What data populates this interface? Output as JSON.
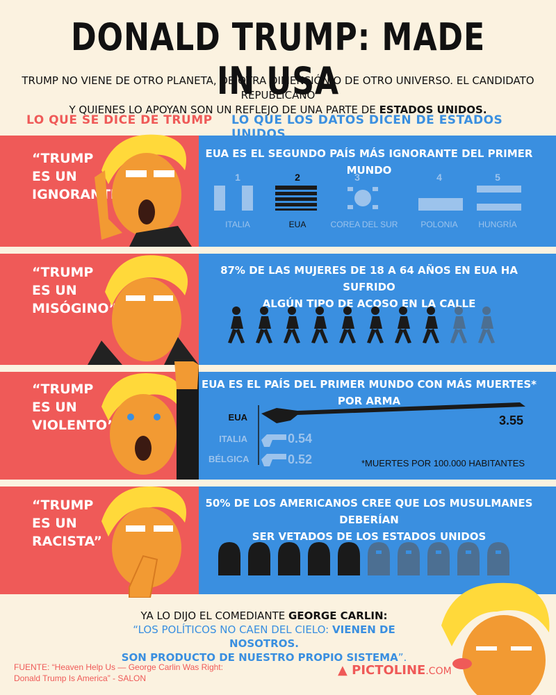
{
  "title": "DONALD TRUMP: MADE IN USA",
  "intro": {
    "line1": "TRUMP NO VIENE DE OTRO PLANETA, DE OTRA DIMENSIÓN O DE OTRO UNIVERSO. EL CANDIDATO REPUBLICANO",
    "line2": "Y QUIENES LO APOYAN SON UN REFLEJO DE UNA PARTE DE",
    "line2_bold": "ESTADOS UNIDOS."
  },
  "headers": {
    "left": "LO QUE SE DICE DE TRUMP",
    "right": "LO QUE LOS DATOS DICEN DE ESTADOS UNIDOS"
  },
  "colors": {
    "red": "#ef5a58",
    "blue": "#3a8fe0",
    "cream": "#fbf2e0",
    "dark": "#1a1a1a",
    "light_blue": "#9cc3ec"
  },
  "rows": [
    {
      "quote": [
        "“TRUMP",
        "ES UN",
        "IGNORANTE”"
      ],
      "title": "EUA ES EL SEGUNDO PAÍS MÁS IGNORANTE DEL PRIMER MUNDO",
      "ranking": [
        {
          "rank": "1",
          "country": "ITALIA"
        },
        {
          "rank": "2",
          "country": "EUA"
        },
        {
          "rank": "3",
          "country": "COREA DEL SUR"
        },
        {
          "rank": "4",
          "country": "POLONIA"
        },
        {
          "rank": "5",
          "country": "HUNGRÍA"
        }
      ]
    },
    {
      "quote": [
        "“TRUMP",
        "ES UN",
        "MISÓGINO”"
      ],
      "title_line1": "87% DE LAS MUJERES DE 18 A 64 AÑOS EN EUA HA SUFRIDO",
      "title_line2": "ALGÚN TIPO DE ACOSO EN LA CALLE",
      "percent": 87
    },
    {
      "quote": [
        "“TRUMP",
        "ES UN",
        "VIOLENTO”"
      ],
      "title": "EUA ES EL PAÍS DEL PRIMER MUNDO CON MÁS MUERTES* POR ARMA",
      "guns": [
        {
          "country": "EUA",
          "value": "3.55"
        },
        {
          "country": "ITALIA",
          "value": "0.54"
        },
        {
          "country": "BÉLGICA",
          "value": "0.52"
        }
      ],
      "note": "*MUERTES POR 100.000 HABITANTES"
    },
    {
      "quote": [
        "“TRUMP",
        "ES UN",
        "RACISTA”"
      ],
      "title_line1": "50% DE LOS AMERICANOS CREE QUE LOS MUSULMANES DEBERÍAN",
      "title_line2": "SER VETADOS DE LOS ESTADOS UNIDOS",
      "percent": 50
    }
  ],
  "footer": {
    "intro": "YA LO DIJO EL COMEDIANTE",
    "name": "GEORGE CARLIN:",
    "q1a": "“LOS POLÍTICOS NO CAEN DEL CIELO:",
    "q1b": "VIENEN DE NOSOTROS.",
    "q2": "SON PRODUCTO DE NUESTRO PROPIO SISTEMA",
    "q2end": "”.",
    "source1": "FUENTE: “Heaven Help Us — George Carlin Was Right:",
    "source2": "Donald Trump Is America” - SALON",
    "brand": "PICTOLINE",
    "brand_suffix": ".COM"
  }
}
